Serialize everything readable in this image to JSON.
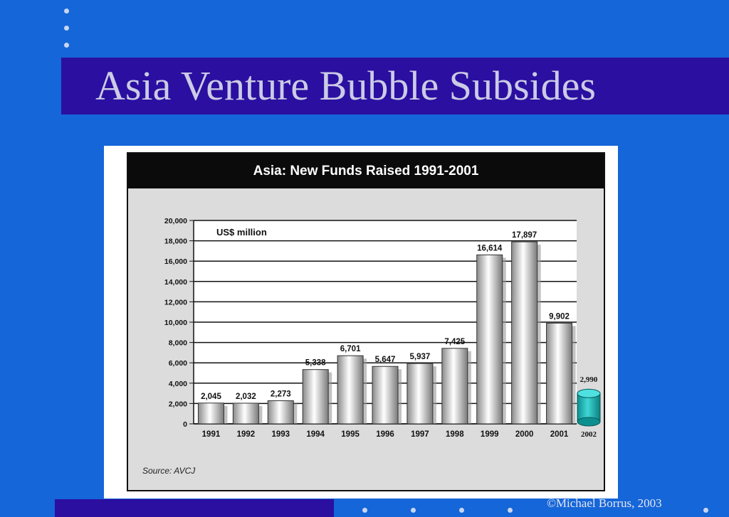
{
  "slide": {
    "title": "Asia Venture Bubble Subsides",
    "copyright": "©Michael Borrus, 2003"
  },
  "colors": {
    "background": "#1566d8",
    "title_band": "#2b0fa0",
    "bar_fill": "#b8b8b8",
    "projection_fill": "#16b4b4"
  },
  "chart_data": {
    "type": "bar",
    "title": "Asia: New Funds Raised 1991-2001",
    "ylabel": "US$ million",
    "source": "Source: AVCJ",
    "ylim": [
      0,
      20000
    ],
    "yticks": [
      "0",
      "2,000",
      "4,000",
      "6,000",
      "8,000",
      "10,000",
      "12,000",
      "14,000",
      "16,000",
      "18,000",
      "20,000"
    ],
    "grid": true,
    "categories": [
      "1991",
      "1992",
      "1993",
      "1994",
      "1995",
      "1996",
      "1997",
      "1998",
      "1999",
      "2000",
      "2001"
    ],
    "values": [
      2045,
      2032,
      2273,
      5338,
      6701,
      5647,
      5937,
      7425,
      16614,
      17897,
      9902
    ],
    "value_labels": [
      "2,045",
      "2,032",
      "2,273",
      "5,338",
      "6,701",
      "5,647",
      "5,937",
      "7,425",
      "16,614",
      "17,897",
      "9,902"
    ],
    "projection": {
      "category": "2002",
      "value": 2990,
      "label": "2,990"
    }
  }
}
